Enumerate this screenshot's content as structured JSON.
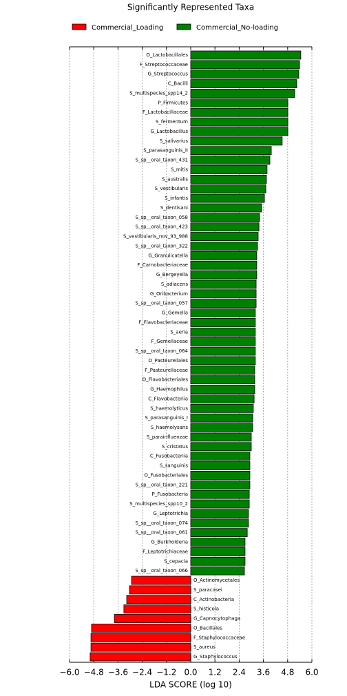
{
  "chart_data": {
    "type": "barh",
    "title": "Significantly Represented Taxa",
    "xlabel": "LDA SCORE (log 10)",
    "categories": [
      "O_Lactobacillales",
      "F_Streptococcaceae",
      "G_Streptococcus",
      "C_Bacilli",
      "S_multispecies_spp14_2",
      "P_Firmicutes",
      "F_Lactobacillaceae",
      "S_fermentum",
      "G_Lactobacillus",
      "S_salivarius",
      "S_parasanguinis_II",
      "S_sp__oral_taxon_431",
      "S_mitis",
      "S_australis",
      "S_vestibularis",
      "S_infantis",
      "S_dentisani",
      "S_sp__oral_taxon_058",
      "S_sp__oral_taxon_423",
      "S_vestibularis_nov_93_988",
      "S_sp__oral_taxon_322",
      "G_Granulicatella",
      "F_Carnobacteriaceae",
      "G_Bergeyella",
      "S_adiacens",
      "G_Oribacterium",
      "S_sp__oral_taxon_057",
      "G_Gemella",
      "F_Flavobacteriaceae",
      "S_aeria",
      "F_Gemellaceae",
      "S_sp__oral_taxon_064",
      "O_Pasteurellales",
      "F_Pasteurellaceae",
      "O_Flavobacteriales",
      "G_Haemophilus",
      "C_Flavobacteriia",
      "S_haemolyticus",
      "S_parasanguinis_I",
      "S_haemolysans",
      "S_parainfluenzae",
      "S_cristatus",
      "C_Fusobacteriia",
      "S_sanguinis",
      "O_Fusobacteriales",
      "S_sp__oral_taxon_221",
      "P_Fusobacteria",
      "S_multispecies_spp10_2",
      "G_Leptotrichia",
      "S_sp__oral_taxon_074",
      "S_sp__oral_taxon_061",
      "G_Burkholderia",
      "F_Leptotrichiaceae",
      "S_cepacia",
      "S_sp__oral_taxon_066",
      "O_Actinomycetales",
      "S_paracasei",
      "C_Actinobacteria",
      "S_histicola",
      "G_Capnocytophaga",
      "O_Bacillales",
      "F_Staphylococcaceae",
      "S_aureus",
      "G_Staphylococcus"
    ],
    "series": [
      {
        "name": "Commercial_Loading",
        "color": "#ff0000",
        "values": [
          null,
          null,
          null,
          null,
          null,
          null,
          null,
          null,
          null,
          null,
          null,
          null,
          null,
          null,
          null,
          null,
          null,
          null,
          null,
          null,
          null,
          null,
          null,
          null,
          null,
          null,
          null,
          null,
          null,
          null,
          null,
          null,
          null,
          null,
          null,
          null,
          null,
          null,
          null,
          null,
          null,
          null,
          null,
          null,
          null,
          null,
          null,
          null,
          null,
          null,
          null,
          null,
          null,
          null,
          null,
          -2.93,
          -3.03,
          -3.17,
          -3.31,
          -3.78,
          -4.91,
          -4.94,
          -4.94,
          -4.98
        ]
      },
      {
        "name": "Commercial_No-loading",
        "color": "#008000",
        "values": [
          5.45,
          5.39,
          5.35,
          5.25,
          5.15,
          4.81,
          4.81,
          4.81,
          4.81,
          4.53,
          3.99,
          3.92,
          3.78,
          3.75,
          3.72,
          3.65,
          3.51,
          3.41,
          3.38,
          3.34,
          3.31,
          3.27,
          3.27,
          3.27,
          3.24,
          3.24,
          3.24,
          3.2,
          3.2,
          3.2,
          3.2,
          3.2,
          3.2,
          3.17,
          3.17,
          3.17,
          3.14,
          3.1,
          3.07,
          3.07,
          3.0,
          3.0,
          2.93,
          2.93,
          2.93,
          2.93,
          2.9,
          2.9,
          2.86,
          2.86,
          2.8,
          2.69,
          2.69,
          2.69,
          2.66,
          null,
          null,
          null,
          null,
          null,
          null,
          null,
          null,
          null
        ]
      }
    ],
    "xlim": [
      -6.0,
      6.0
    ],
    "xticks": [
      {
        "value": -6.0,
        "label": "−6.0"
      },
      {
        "value": -4.8,
        "label": "−4.8"
      },
      {
        "value": -3.6,
        "label": "−3.6"
      },
      {
        "value": -2.4,
        "label": "−2.4"
      },
      {
        "value": -1.2,
        "label": "−1.2"
      },
      {
        "value": 0.0,
        "label": "0.0"
      },
      {
        "value": 1.2,
        "label": "1.2"
      },
      {
        "value": 2.4,
        "label": "2.4"
      },
      {
        "value": 3.6,
        "label": "3.6"
      },
      {
        "value": 4.8,
        "label": "4.8"
      },
      {
        "value": 6.0,
        "label": "6.0"
      }
    ],
    "grid": true
  }
}
